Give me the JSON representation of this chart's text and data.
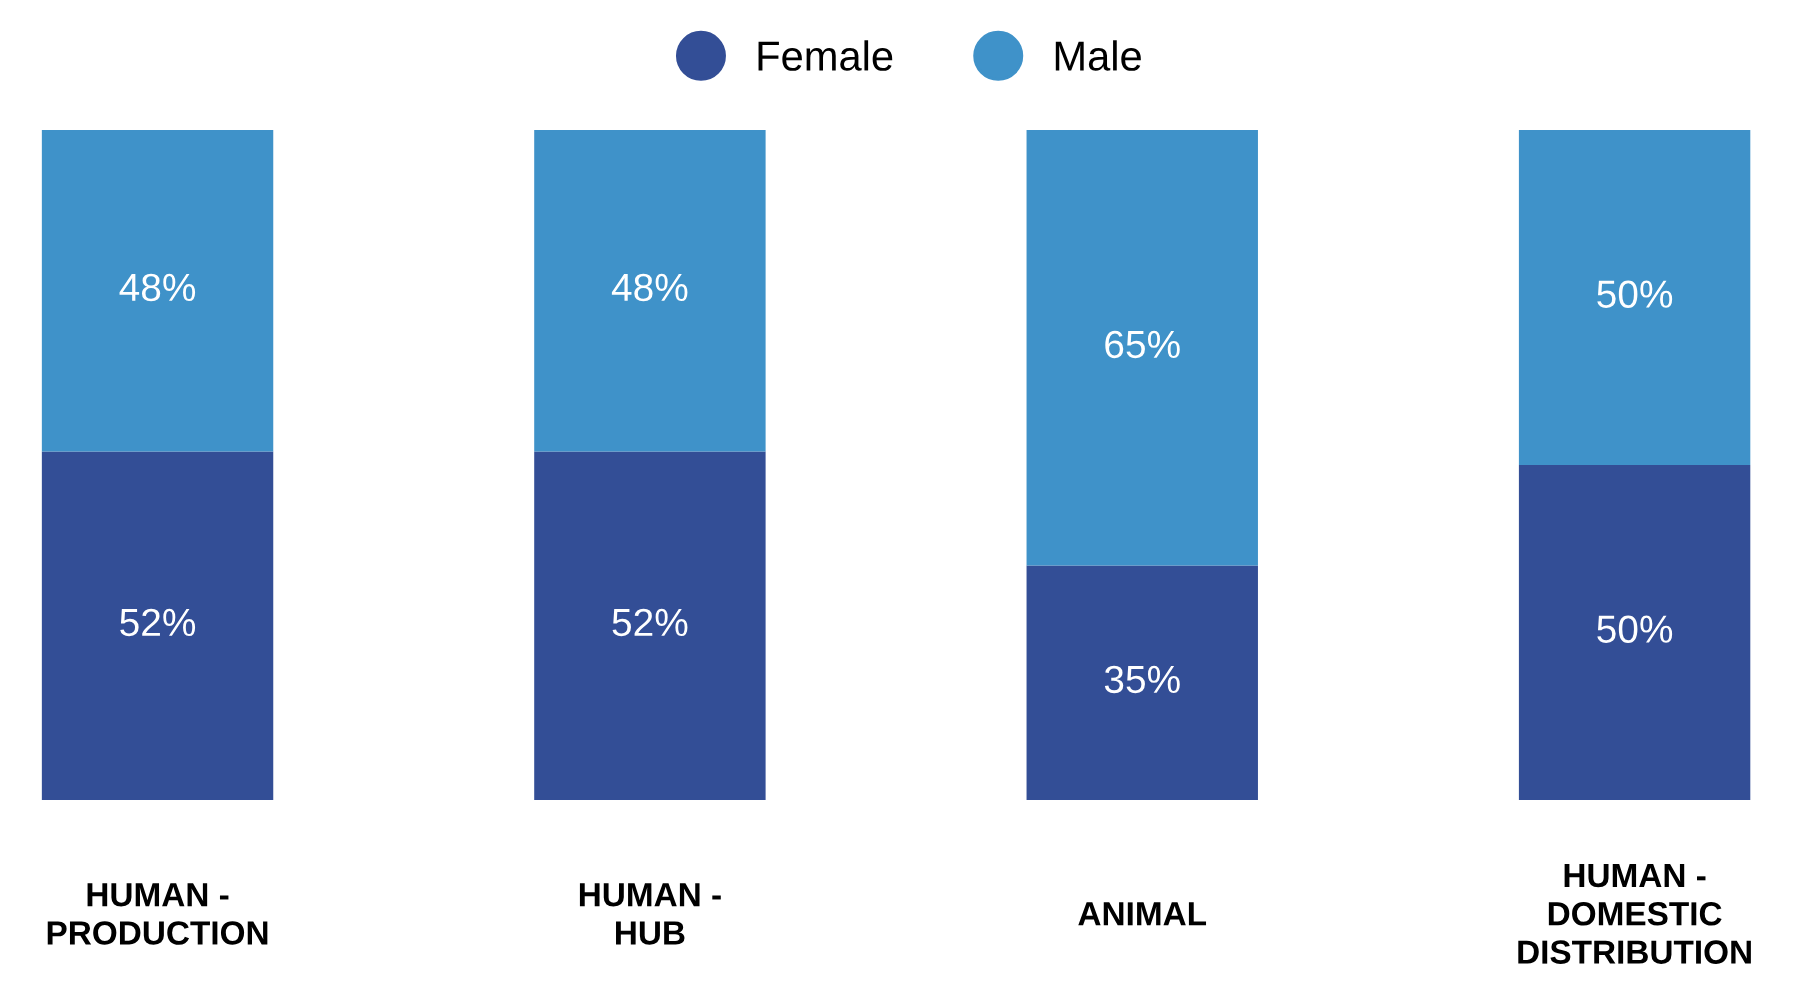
{
  "chart_data": {
    "type": "bar",
    "stacked": true,
    "categories": [
      "HUMAN -\nPRODUCTION",
      "HUMAN -\nHUB",
      "ANIMAL",
      "HUMAN -\nDOMESTIC\nDISTRIBUTION"
    ],
    "series": [
      {
        "name": "Female",
        "color": "#334e96",
        "values": [
          52,
          52,
          35,
          50
        ],
        "value_labels": [
          "52%",
          "52%",
          "35%",
          "50%"
        ]
      },
      {
        "name": "Male",
        "color": "#3f92c9",
        "values": [
          48,
          48,
          65,
          50
        ],
        "value_labels": [
          "48%",
          "48%",
          "65%",
          "50%"
        ]
      }
    ],
    "legend": "top",
    "marker": "circle",
    "grid": false
  }
}
